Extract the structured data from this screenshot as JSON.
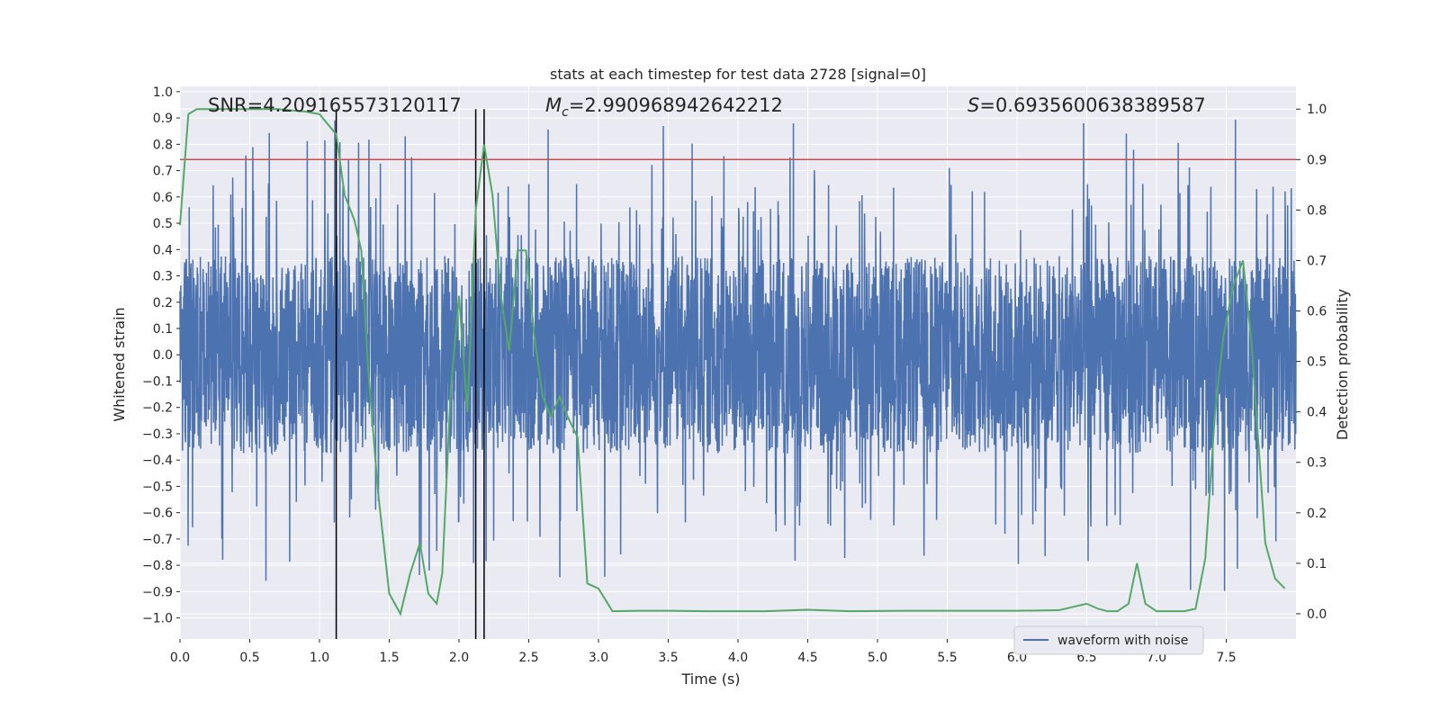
{
  "chart_data": {
    "type": "line",
    "title": "stats at each timestep for test data 2728 [signal=0]",
    "xlabel": "Time (s)",
    "ylabel": "Whitened strain",
    "y2label": "Detection probability",
    "xlim": [
      0.0,
      8.0
    ],
    "ylim": [
      -1.08,
      1.02
    ],
    "y2lim": [
      -0.05,
      1.045
    ],
    "xticks": [
      "0.0",
      "0.5",
      "1.0",
      "1.5",
      "2.0",
      "2.5",
      "3.0",
      "3.5",
      "4.0",
      "4.5",
      "5.0",
      "5.5",
      "6.0",
      "6.5",
      "7.0",
      "7.5"
    ],
    "yticks": [
      "1.0",
      "0.9",
      "0.8",
      "0.7",
      "0.6",
      "0.5",
      "0.4",
      "0.3",
      "0.2",
      "0.1",
      "0.0",
      "−0.1",
      "−0.2",
      "−0.3",
      "−0.4",
      "−0.5",
      "−0.6",
      "−0.7",
      "−0.8",
      "−0.9",
      "−1.0"
    ],
    "y2ticks": [
      "1.0",
      "0.9",
      "0.8",
      "0.7",
      "0.6",
      "0.5",
      "0.4",
      "0.3",
      "0.2",
      "0.1",
      "0.0"
    ],
    "grid": true,
    "legend_placement": "lower-right",
    "annotations": {
      "snr": "SNR=4.209165573120117",
      "mc_symbol": "M",
      "mc_sub": "c",
      "mc_value": "=2.990968942642212",
      "s_symbol": "S",
      "s_value": "=0.6935600638389587"
    },
    "threshold": {
      "y2": 0.9,
      "color": "#c44e52"
    },
    "vlines": [
      1.12,
      2.12,
      2.18
    ],
    "series": [
      {
        "name": "waveform with noise",
        "axis": "left",
        "color": "#4c72b0",
        "style": "dense noise, amplitude approximately ±0.4 with spikes to about ±0.9"
      },
      {
        "axis": "right",
        "color": "#55a868",
        "x": [
          0.0,
          0.06,
          0.12,
          0.3,
          0.5,
          0.7,
          0.9,
          1.0,
          1.06,
          1.12,
          1.18,
          1.25,
          1.3,
          1.35,
          1.42,
          1.5,
          1.58,
          1.65,
          1.72,
          1.78,
          1.84,
          1.88,
          1.94,
          2.0,
          2.06,
          2.12,
          2.18,
          2.24,
          2.3,
          2.36,
          2.42,
          2.48,
          2.54,
          2.6,
          2.66,
          2.72,
          2.78,
          2.85,
          2.92,
          3.0,
          3.1,
          3.3,
          3.5,
          3.8,
          4.2,
          4.5,
          4.8,
          5.2,
          5.6,
          6.0,
          6.3,
          6.5,
          6.58,
          6.65,
          6.72,
          6.8,
          6.86,
          6.92,
          7.0,
          7.1,
          7.2,
          7.28,
          7.35,
          7.42,
          7.48,
          7.55,
          7.62,
          7.68,
          7.72,
          7.78,
          7.85,
          7.92
        ],
        "y": [
          0.77,
          0.99,
          1.0,
          1.0,
          1.0,
          1.0,
          0.995,
          0.99,
          0.97,
          0.95,
          0.83,
          0.78,
          0.72,
          0.48,
          0.24,
          0.04,
          0.0,
          0.08,
          0.14,
          0.04,
          0.02,
          0.08,
          0.44,
          0.63,
          0.4,
          0.8,
          0.93,
          0.83,
          0.63,
          0.52,
          0.72,
          0.72,
          0.55,
          0.43,
          0.39,
          0.43,
          0.39,
          0.35,
          0.06,
          0.05,
          0.005,
          0.006,
          0.006,
          0.005,
          0.005,
          0.008,
          0.005,
          0.006,
          0.006,
          0.006,
          0.007,
          0.02,
          0.01,
          0.005,
          0.005,
          0.02,
          0.1,
          0.02,
          0.005,
          0.005,
          0.005,
          0.01,
          0.11,
          0.4,
          0.55,
          0.65,
          0.7,
          0.54,
          0.38,
          0.14,
          0.07,
          0.05
        ]
      }
    ]
  }
}
